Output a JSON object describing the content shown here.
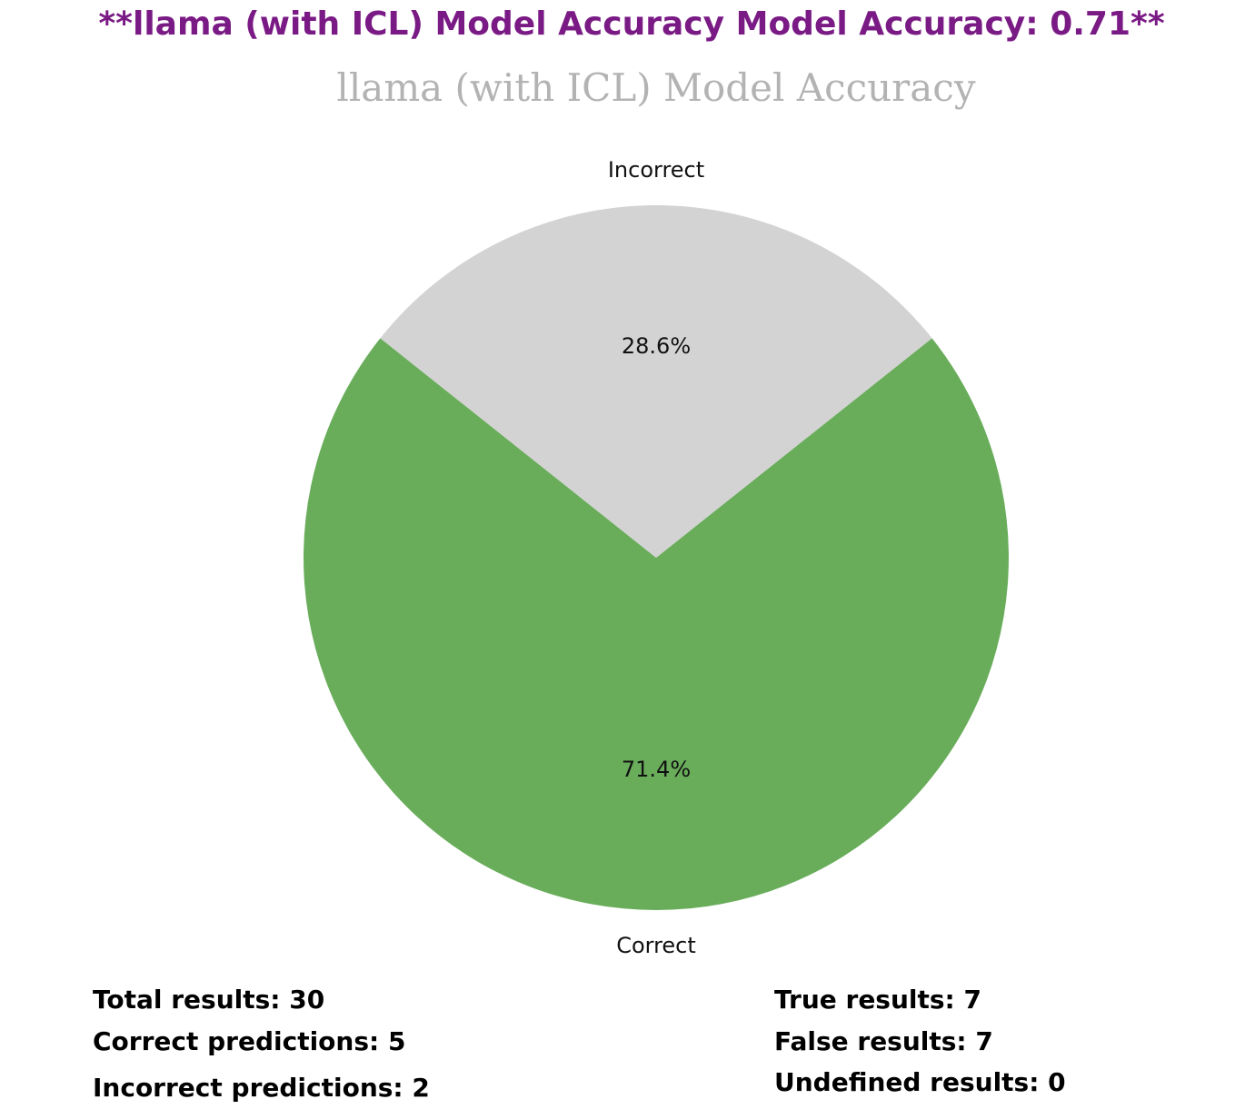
{
  "header": {
    "title": "**llama (with ICL) Model Accuracy Model Accuracy: 0.71**"
  },
  "chart_data": {
    "type": "pie",
    "title": "llama (with ICL) Model Accuracy",
    "categories": [
      "Correct",
      "Incorrect"
    ],
    "values": [
      71.4,
      28.6
    ],
    "labels": [
      "71.4%",
      "28.6%"
    ],
    "colors": [
      "#69ad5b",
      "#d3d3d3"
    ],
    "legend": "none"
  },
  "stats": {
    "left": [
      {
        "label": "Total results: 30"
      },
      {
        "label": "Correct predictions: 5"
      },
      {
        "label": "Incorrect predictions: 2"
      }
    ],
    "right": [
      {
        "label": "True results: 7"
      },
      {
        "label": "False results: 7"
      },
      {
        "label": "Undefined results: 0"
      }
    ]
  }
}
